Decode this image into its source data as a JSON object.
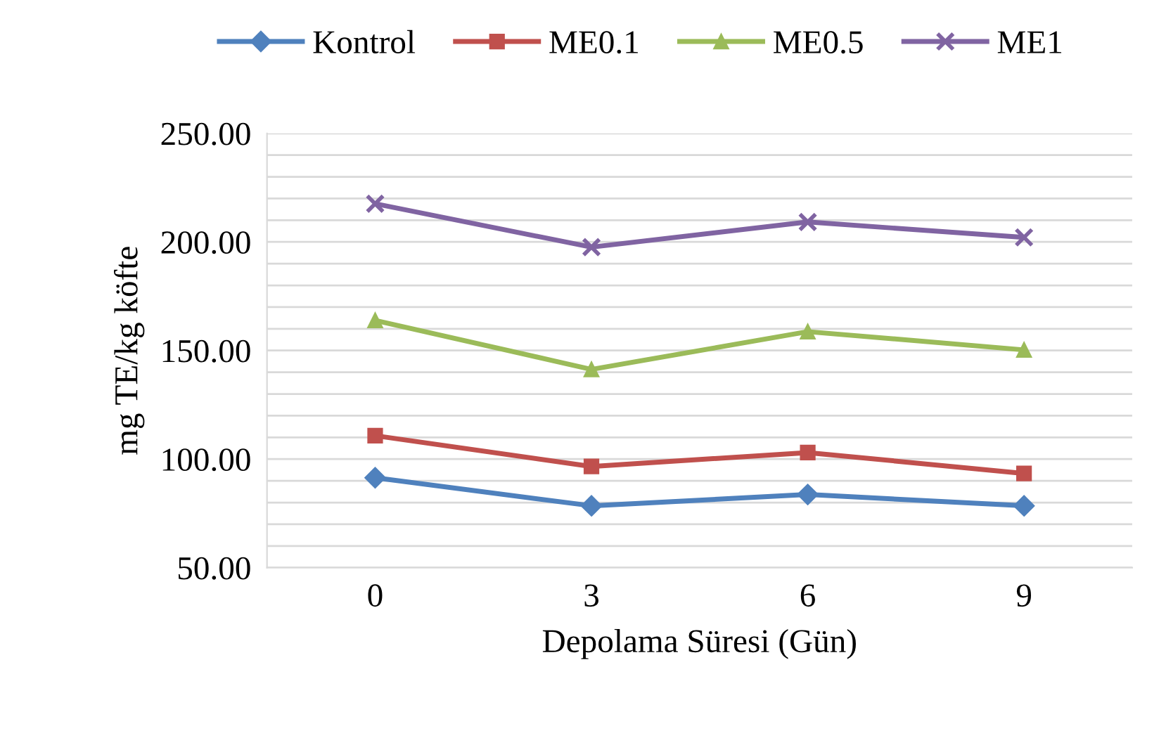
{
  "chart_data": {
    "type": "line",
    "xlabel": "Depolama Süresi (Gün)",
    "ylabel": "mg TE/kg köfte",
    "categories": [
      "0",
      "3",
      "6",
      "9"
    ],
    "series": [
      {
        "name": "Kontrol",
        "color": "#4f81bd",
        "marker": "diamond",
        "values": [
          91.4,
          78.5,
          83.7,
          78.5
        ]
      },
      {
        "name": "ME0.1",
        "color": "#c0504d",
        "marker": "square",
        "values": [
          110.8,
          96.6,
          103,
          93.4
        ]
      },
      {
        "name": "ME0.5",
        "color": "#9bbb59",
        "marker": "triangle",
        "values": [
          163.9,
          141.3,
          158.7,
          150.3
        ]
      },
      {
        "name": "ME1",
        "color": "#8064a2",
        "marker": "cross",
        "values": [
          217.6,
          197.6,
          209.2,
          202.1
        ]
      }
    ],
    "ylim": [
      50,
      250
    ],
    "yticks": [
      {
        "value": 50,
        "label": "50.00"
      },
      {
        "value": 60,
        "label": null
      },
      {
        "value": 70,
        "label": null
      },
      {
        "value": 80,
        "label": null
      },
      {
        "value": 90,
        "label": null
      },
      {
        "value": 100,
        "label": "100.00"
      },
      {
        "value": 110,
        "label": null
      },
      {
        "value": 120,
        "label": null
      },
      {
        "value": 130,
        "label": null
      },
      {
        "value": 140,
        "label": null
      },
      {
        "value": 150,
        "label": "150.00"
      },
      {
        "value": 160,
        "label": null
      },
      {
        "value": 170,
        "label": null
      },
      {
        "value": 180,
        "label": null
      },
      {
        "value": 190,
        "label": null
      },
      {
        "value": 200,
        "label": "200.00"
      },
      {
        "value": 210,
        "label": null
      },
      {
        "value": 220,
        "label": null
      },
      {
        "value": 230,
        "label": null
      },
      {
        "value": 240,
        "label": null
      },
      {
        "value": 250,
        "label": "250.00"
      }
    ],
    "grid": "y",
    "legend": "top",
    "line_style": "solid"
  }
}
